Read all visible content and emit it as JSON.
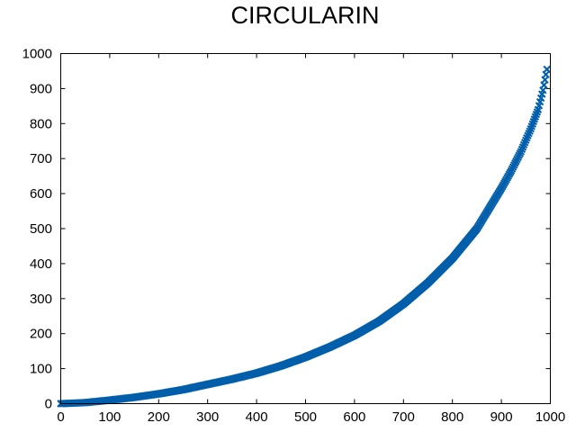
{
  "chart_data": {
    "type": "scatter",
    "title": "CIRCULARIN",
    "xlabel": "",
    "ylabel": "",
    "xlim": [
      0,
      1000
    ],
    "ylim": [
      0,
      1000
    ],
    "xticks": [
      0,
      100,
      200,
      300,
      400,
      500,
      600,
      700,
      800,
      900,
      1000
    ],
    "yticks": [
      0,
      100,
      200,
      300,
      400,
      500,
      600,
      700,
      800,
      900,
      1000
    ],
    "grid": false,
    "marker": "x",
    "color": "#005eaa",
    "series": [
      {
        "x": [
          0,
          50,
          100,
          150,
          200,
          250,
          300,
          350,
          400,
          450,
          500,
          550,
          600,
          650,
          700,
          750,
          800,
          850,
          900,
          920,
          940,
          960,
          975,
          985,
          993
        ],
        "y": [
          0,
          3,
          10,
          18,
          28,
          40,
          55,
          70,
          87,
          108,
          133,
          162,
          195,
          235,
          285,
          345,
          415,
          500,
          615,
          665,
          720,
          785,
          840,
          895,
          955
        ]
      }
    ]
  }
}
